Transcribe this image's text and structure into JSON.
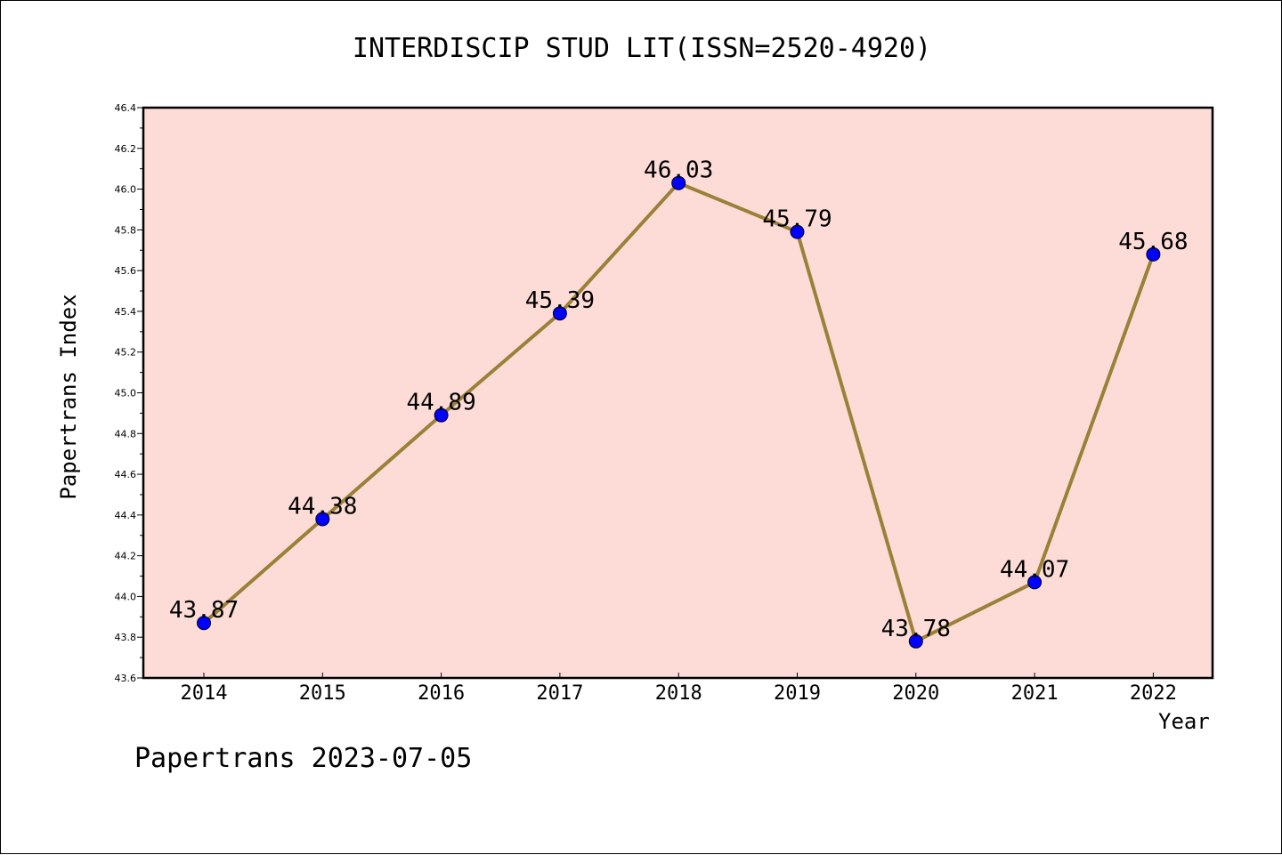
{
  "chart_data": {
    "type": "line",
    "title": "INTERDISCIP STUD LIT(ISSN=2520-4920)",
    "xlabel": "Year",
    "ylabel": "Papertrans Index",
    "x": [
      "2014",
      "2015",
      "2016",
      "2017",
      "2018",
      "2019",
      "2020",
      "2021",
      "2022"
    ],
    "series": [
      {
        "values": [
          43.87,
          44.38,
          44.89,
          45.39,
          46.03,
          45.79,
          43.78,
          44.07,
          45.68
        ]
      }
    ],
    "ylim": [
      43.6,
      46.4
    ],
    "yticks": [
      "43.6",
      "43.8",
      "44.0",
      "44.2",
      "44.4",
      "44.6",
      "44.8",
      "45.0",
      "45.2",
      "45.4",
      "45.6",
      "45.8",
      "46.0",
      "46.2",
      "46.4"
    ],
    "grid": false,
    "colors": {
      "plot_background": "#fddcd8",
      "line": "#9b8038",
      "marker": "#0000ff"
    }
  },
  "footer": {
    "caption": "Papertrans 2023-07-05"
  }
}
